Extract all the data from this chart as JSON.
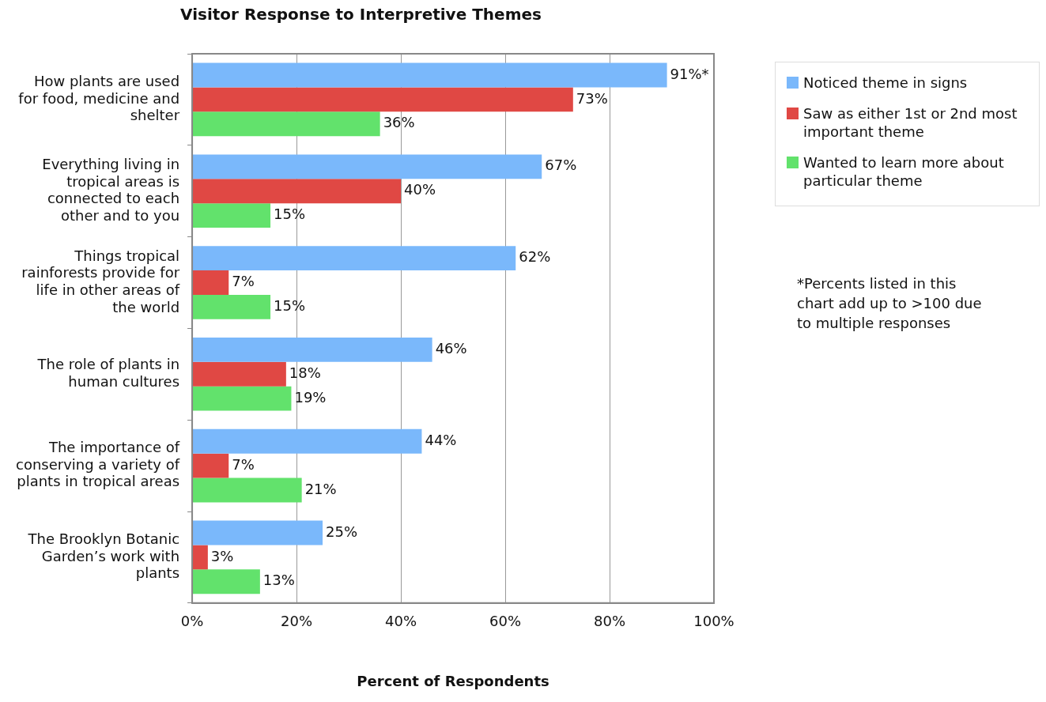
{
  "chart_data": {
    "type": "bar",
    "orientation": "horizontal",
    "title": "Visitor Response to Interpretive Themes",
    "xlabel": "Percent of Respondents",
    "categories": [
      "How plants are used for food, medicine and shelter",
      "Everything living in tropical areas is connected to each other and to you",
      "Things tropical rainforests provide for life in other areas of the world",
      "The role of plants in human cultures",
      "The importance of conserving a variety of plants in tropical areas",
      "The Brooklyn Botanic Garden’s work with plants"
    ],
    "series": [
      {
        "name": "Noticed  theme in signs",
        "color": "#7ab8fb",
        "values": [
          91,
          67,
          62,
          46,
          44,
          25
        ],
        "value_labels": [
          "91%*",
          "67%",
          "62%",
          "46%",
          "44%",
          "25%"
        ]
      },
      {
        "name": "Saw as either 1st or 2nd most important theme",
        "color": "#e04844",
        "values": [
          73,
          40,
          7,
          18,
          7,
          3
        ],
        "value_labels": [
          "73%",
          "40%",
          "7%",
          "18%",
          "7%",
          "3%"
        ]
      },
      {
        "name": "Wanted to learn more about particular theme",
        "color": "#62e26c",
        "values": [
          36,
          15,
          15,
          19,
          21,
          13
        ],
        "value_labels": [
          "36%",
          "15%",
          "15%",
          "19%",
          "21%",
          "13%"
        ]
      }
    ],
    "xlim": [
      0,
      100
    ],
    "xticks": [
      {
        "value": 0,
        "label": "0%"
      },
      {
        "value": 20,
        "label": "20%"
      },
      {
        "value": 40,
        "label": "40%"
      },
      {
        "value": 60,
        "label": "60%"
      },
      {
        "value": 80,
        "label": "80%"
      },
      {
        "value": 100,
        "label": "100%"
      }
    ],
    "grid": "x",
    "legend": "top right",
    "annotations": [
      "*Percents listed in this chart add up to >100 due to multiple responses"
    ]
  }
}
